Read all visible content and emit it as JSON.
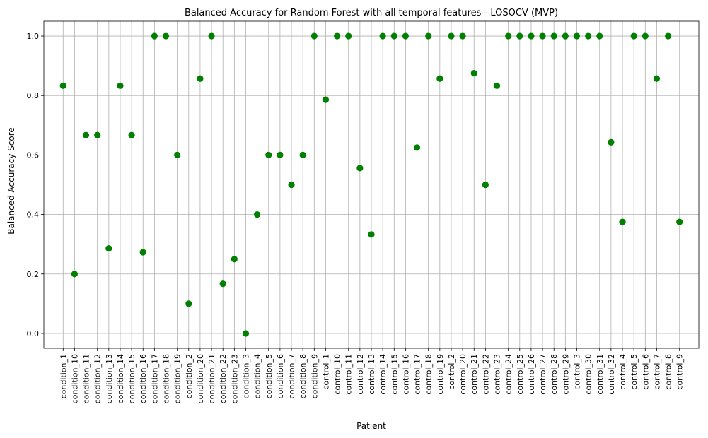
{
  "chart_data": {
    "type": "scatter",
    "title": "Balanced Accuracy for Random Forest with all temporal features - LOSOCV (MVP)",
    "xlabel": "Patient",
    "ylabel": "Balanced Accuracy Score",
    "ylim": [
      -0.05,
      1.05
    ],
    "yticks": [
      0.0,
      0.2,
      0.4,
      0.6,
      0.8,
      1.0
    ],
    "ytick_labels": [
      "0.0",
      "0.2",
      "0.4",
      "0.6",
      "0.8",
      "1.0"
    ],
    "grid": true,
    "marker_color": "#008000",
    "categories": [
      "condition_1",
      "condition_10",
      "condition_11",
      "condition_12",
      "condition_13",
      "condition_14",
      "condition_15",
      "condition_16",
      "condition_17",
      "condition_18",
      "condition_19",
      "condition_2",
      "condition_20",
      "condition_21",
      "condition_22",
      "condition_23",
      "condition_3",
      "condition_4",
      "condition_5",
      "condition_6",
      "condition_7",
      "condition_8",
      "condition_9",
      "control_1",
      "control_10",
      "control_11",
      "control_12",
      "control_13",
      "control_14",
      "control_15",
      "control_16",
      "control_17",
      "control_18",
      "control_19",
      "control_2",
      "control_20",
      "control_21",
      "control_22",
      "control_23",
      "control_24",
      "control_25",
      "control_26",
      "control_27",
      "control_28",
      "control_29",
      "control_3",
      "control_30",
      "control_31",
      "control_32",
      "control_4",
      "control_5",
      "control_6",
      "control_7",
      "control_8",
      "control_9"
    ],
    "values": [
      0.833,
      0.2,
      0.667,
      0.667,
      0.286,
      0.833,
      0.667,
      0.273,
      1.0,
      1.0,
      0.6,
      0.1,
      0.857,
      1.0,
      0.167,
      0.25,
      0.0,
      0.4,
      0.6,
      0.6,
      0.5,
      0.6,
      1.0,
      0.786,
      1.0,
      1.0,
      0.556,
      0.333,
      1.0,
      1.0,
      1.0,
      0.625,
      1.0,
      0.857,
      1.0,
      1.0,
      0.875,
      0.5,
      0.833,
      1.0,
      1.0,
      1.0,
      1.0,
      1.0,
      1.0,
      1.0,
      1.0,
      1.0,
      0.643,
      0.375,
      1.0,
      1.0,
      0.857,
      1.0,
      0.375
    ]
  }
}
